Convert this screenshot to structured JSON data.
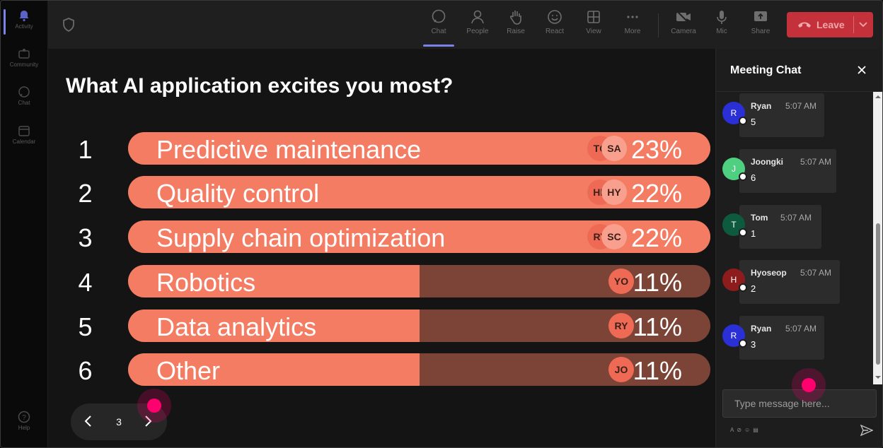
{
  "rail": {
    "items": [
      {
        "label": "Activity",
        "icon": "bell-icon"
      },
      {
        "label": "Community",
        "icon": "community-icon"
      },
      {
        "label": "Chat",
        "icon": "chat-icon"
      },
      {
        "label": "Calendar",
        "icon": "calendar-icon"
      }
    ],
    "help": {
      "label": "Help",
      "icon": "help-icon"
    }
  },
  "toolbar": {
    "buttons": [
      {
        "label": "Chat",
        "icon": "chat-icon"
      },
      {
        "label": "People",
        "icon": "people-icon"
      },
      {
        "label": "Raise",
        "icon": "hand-icon"
      },
      {
        "label": "React",
        "icon": "smiley-icon"
      },
      {
        "label": "View",
        "icon": "grid-icon"
      },
      {
        "label": "More",
        "icon": "more-icon"
      },
      {
        "label": "Camera",
        "icon": "camera-off-icon"
      },
      {
        "label": "Mic",
        "icon": "mic-icon"
      },
      {
        "label": "Share",
        "icon": "share-icon"
      }
    ],
    "leave_label": "Leave",
    "accent": "#7b83eb",
    "leave_color": "#c4313b"
  },
  "poll": {
    "title": "What AI application excites you most?",
    "bar_color": "#f47c63",
    "track_color": "#7c4436",
    "options": [
      {
        "rank": "1",
        "label": "Predictive maintenance",
        "percent": "23%",
        "share": 1.0,
        "avatars": [
          "TC",
          "SA"
        ]
      },
      {
        "rank": "2",
        "label": "Quality control",
        "percent": "22%",
        "share": 1.0,
        "avatars": [
          "HE",
          "HY"
        ]
      },
      {
        "rank": "3",
        "label": "Supply chain optimization",
        "percent": "22%",
        "share": 1.0,
        "avatars": [
          "RY",
          "SC"
        ]
      },
      {
        "rank": "4",
        "label": "Robotics",
        "percent": "11%",
        "share": 0.5,
        "avatars": [
          "YO"
        ]
      },
      {
        "rank": "5",
        "label": "Data analytics",
        "percent": "11%",
        "share": 0.5,
        "avatars": [
          "RY"
        ]
      },
      {
        "rank": "6",
        "label": "Other",
        "percent": "11%",
        "share": 0.5,
        "avatars": [
          "JO"
        ]
      }
    ],
    "page": "3"
  },
  "chat": {
    "title": "Meeting Chat",
    "placeholder": "Type message here...",
    "messages": [
      {
        "initial": "R",
        "name": "Ryan",
        "time": "5:07 AM",
        "text": "5",
        "color": "#2a2fd6"
      },
      {
        "initial": "J",
        "name": "Joongki",
        "time": "5:07 AM",
        "text": "6",
        "color": "#4fcf80"
      },
      {
        "initial": "T",
        "name": "Tom",
        "time": "5:07 AM",
        "text": "1",
        "color": "#0d5a3f"
      },
      {
        "initial": "H",
        "name": "Hyoseop",
        "time": "5:07 AM",
        "text": "2",
        "color": "#8d1d1d"
      },
      {
        "initial": "R",
        "name": "Ryan",
        "time": "5:07 AM",
        "text": "3",
        "color": "#2a2fd6"
      }
    ]
  }
}
